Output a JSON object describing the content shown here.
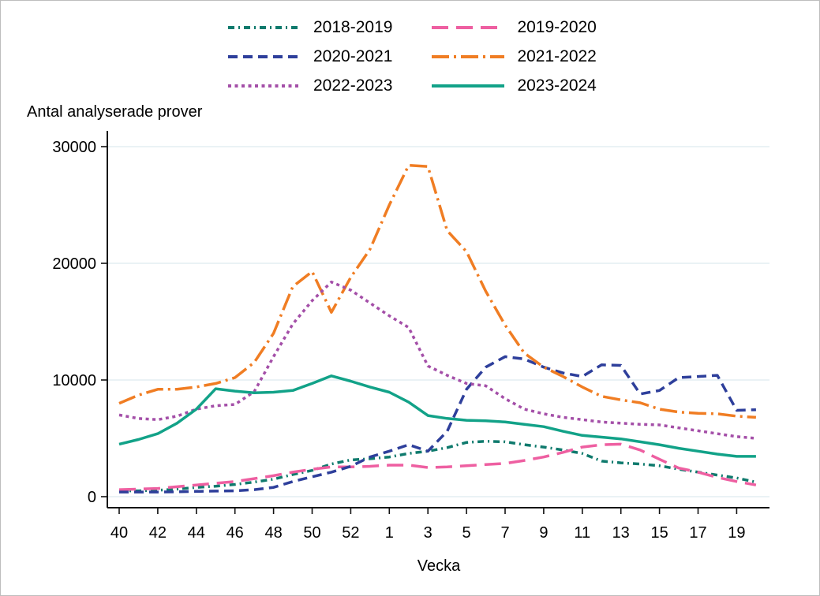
{
  "chart_data": {
    "type": "line",
    "title": "Antal analyserade prover",
    "xlabel": "Vecka",
    "ylabel": "Antal analyserade prover",
    "ylim": [
      0,
      30000
    ],
    "y_ticks": [
      0,
      10000,
      20000,
      30000
    ],
    "y_tick_labels": [
      "0",
      "10000",
      "20000",
      "30000"
    ],
    "x_tick_labels": [
      "40",
      "42",
      "44",
      "46",
      "48",
      "50",
      "52",
      "1",
      "3",
      "5",
      "7",
      "9",
      "11",
      "13",
      "15",
      "17",
      "19"
    ],
    "x_tick_indices": [
      0,
      2,
      4,
      6,
      8,
      10,
      12,
      14,
      16,
      18,
      20,
      22,
      24,
      26,
      28,
      30,
      32
    ],
    "grid": "horizontal",
    "legend_position": "top-center",
    "x_categories": [
      "40",
      "41",
      "42",
      "43",
      "44",
      "45",
      "46",
      "47",
      "48",
      "49",
      "50",
      "51",
      "52",
      "53",
      "1",
      "2",
      "3",
      "4",
      "5",
      "6",
      "7",
      "8",
      "9",
      "10",
      "11",
      "12",
      "13",
      "14",
      "15",
      "16",
      "17",
      "18",
      "19",
      "20"
    ],
    "series": [
      {
        "name": "2018-2019",
        "color": "#0f7a6d",
        "line_style": "dash-dot",
        "values": [
          500,
          500,
          550,
          650,
          800,
          900,
          1050,
          1250,
          1500,
          1900,
          2250,
          2800,
          3150,
          3250,
          3400,
          3700,
          3900,
          4200,
          4650,
          4750,
          4700,
          4450,
          4250,
          4000,
          3700,
          3050,
          2900,
          2800,
          2650,
          2350,
          2100,
          1850,
          1600,
          1250
        ]
      },
      {
        "name": "2019-2020",
        "color": "#ee5fa1",
        "line_style": "long-dash",
        "values": [
          600,
          650,
          700,
          850,
          1000,
          1150,
          1300,
          1550,
          1800,
          2100,
          2350,
          2550,
          2550,
          2600,
          2700,
          2700,
          2500,
          2550,
          2650,
          2750,
          2850,
          3100,
          3400,
          3800,
          4250,
          4450,
          4500,
          4000,
          3200,
          2450,
          2100,
          1650,
          1300,
          1000
        ]
      },
      {
        "name": "2020-2021",
        "color": "#2e3f9b",
        "line_style": "dash",
        "values": [
          400,
          400,
          400,
          420,
          450,
          480,
          500,
          600,
          800,
          1300,
          1700,
          2100,
          2600,
          3400,
          3900,
          4450,
          3900,
          5600,
          9200,
          11100,
          12000,
          11800,
          11100,
          10600,
          10300,
          11300,
          11250,
          8800,
          9100,
          10200,
          10300,
          10400,
          7400,
          7450
        ]
      },
      {
        "name": "2021-2022",
        "color": "#f07d23",
        "line_style": "long-dash-dot",
        "values": [
          8000,
          8700,
          9200,
          9200,
          9400,
          9700,
          10200,
          11500,
          14000,
          18000,
          19300,
          15800,
          18800,
          21200,
          25000,
          28400,
          28300,
          22800,
          21000,
          17600,
          14700,
          12300,
          11100,
          10300,
          9400,
          8600,
          8300,
          8050,
          7500,
          7250,
          7150,
          7100,
          6900,
          6800
        ]
      },
      {
        "name": "2022-2023",
        "color": "#a44fa8",
        "line_style": "dot",
        "values": [
          7000,
          6700,
          6600,
          6900,
          7500,
          7800,
          7900,
          9000,
          12000,
          14800,
          16800,
          18400,
          17700,
          16600,
          15500,
          14500,
          11200,
          10400,
          9700,
          9500,
          8400,
          7500,
          7100,
          6800,
          6600,
          6400,
          6300,
          6200,
          6150,
          5900,
          5650,
          5400,
          5150,
          5000
        ]
      },
      {
        "name": "2023-2024",
        "color": "#12a288",
        "line_style": "solid",
        "values": [
          4500,
          4900,
          5400,
          6300,
          7500,
          9250,
          9050,
          8900,
          8950,
          9100,
          9700,
          10350,
          9900,
          9400,
          8950,
          8100,
          6950,
          6700,
          6550,
          6500,
          6400,
          6200,
          6000,
          5600,
          5250,
          5100,
          4950,
          4700,
          4450,
          4150,
          3900,
          3650,
          3450,
          3450
        ]
      }
    ],
    "colors": {
      "axis": "#111111",
      "gridline": "#e4edf2",
      "text": "#000000"
    }
  }
}
